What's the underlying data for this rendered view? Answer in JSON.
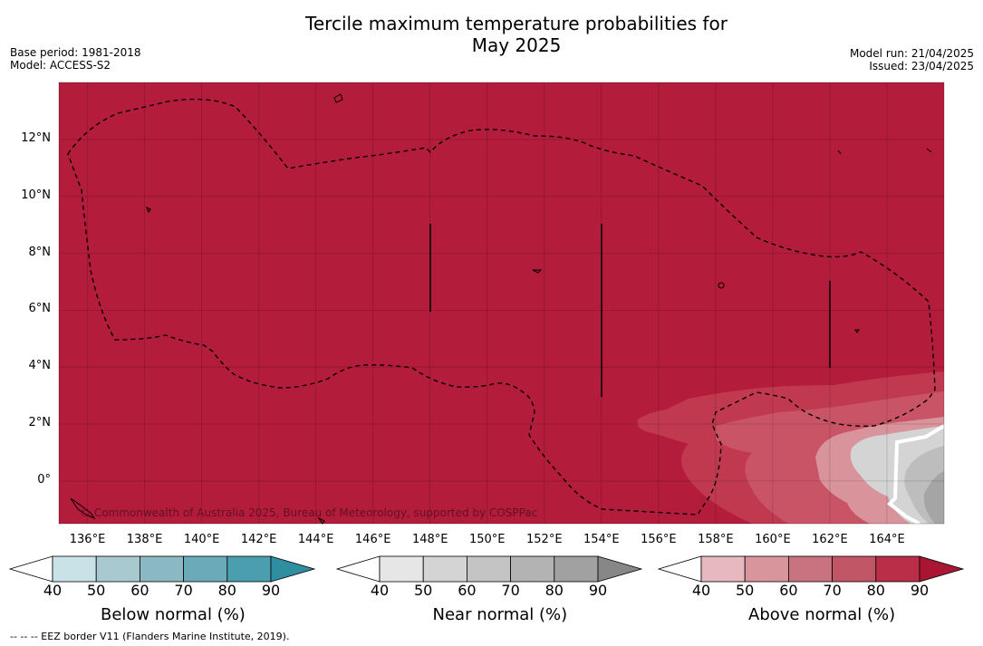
{
  "title_line1": "Tercile maximum temperature probabilities for",
  "title_line2": "May 2025",
  "base_period": "Base period: 1981-2018",
  "model": "Model: ACCESS-S2",
  "model_run": "Model run: 21/04/2025",
  "issued": "Issued: 23/04/2025",
  "copyright": "© Commonwealth of Australia 2025, Bureau of Meteorology, supported by COSPPac",
  "footnote": "--  --  -- EEZ border V11 (Flanders Marine Institute, 2019).",
  "map": {
    "lon_range": [
      135,
      166
    ],
    "lat_range": [
      -1.5,
      14
    ],
    "lon_ticks": [
      "136°E",
      "138°E",
      "140°E",
      "142°E",
      "144°E",
      "146°E",
      "148°E",
      "150°E",
      "152°E",
      "154°E",
      "156°E",
      "158°E",
      "160°E",
      "162°E",
      "164°E"
    ],
    "lat_ticks": [
      "12°N",
      "10°N",
      "8°N",
      "6°N",
      "4°N",
      "2°N",
      "0°"
    ],
    "dominant_category": "Above normal",
    "dominant_probability_bin": "80-90",
    "colors": {
      "above_90": "#b31c3a",
      "above_80": "#c0394f",
      "above_70": "#c95466",
      "above_60": "#d9939b",
      "near_50": "#d4d4d4",
      "near_60": "#bdbdbd",
      "near_70": "#a5a5a5"
    }
  },
  "colorbars": [
    {
      "name": "below",
      "label": "Below normal (%)",
      "ticks": [
        "40",
        "50",
        "60",
        "70",
        "80",
        "90"
      ],
      "colors": [
        "#c9e2e8",
        "#a8c9d0",
        "#8ab8c3",
        "#6babb9",
        "#4a9eae",
        "#2f8fa1"
      ]
    },
    {
      "name": "near",
      "label": "Near normal (%)",
      "ticks": [
        "40",
        "50",
        "60",
        "70",
        "80",
        "90"
      ],
      "colors": [
        "#e6e6e6",
        "#d4d4d4",
        "#c4c4c4",
        "#b3b3b3",
        "#a1a1a1",
        "#878787"
      ]
    },
    {
      "name": "above",
      "label": "Above normal (%)",
      "ticks": [
        "40",
        "50",
        "60",
        "70",
        "80",
        "90"
      ],
      "colors": [
        "#e5b9bf",
        "#d8959c",
        "#c97380",
        "#c15666",
        "#b92f47",
        "#a91633"
      ]
    }
  ]
}
